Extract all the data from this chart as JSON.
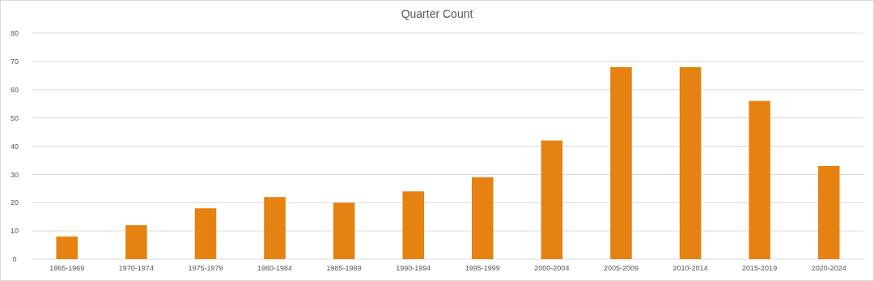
{
  "chart_data": {
    "type": "bar",
    "title": "Quarter Count",
    "categories": [
      "1965-1969",
      "1970-1974",
      "1975-1979",
      "1980-1984",
      "1985-1989",
      "1990-1994",
      "1995-1999",
      "2000-2004",
      "2005-2009",
      "2010-2014",
      "2015-2019",
      "2020-2024"
    ],
    "values": [
      8,
      12,
      18,
      22,
      20,
      24,
      29,
      42,
      68,
      68,
      56,
      33
    ],
    "color": "#e58211",
    "ylim": [
      0,
      80
    ],
    "yticks": [
      0,
      10,
      20,
      30,
      40,
      50,
      60,
      70,
      80
    ],
    "grid": "y"
  }
}
